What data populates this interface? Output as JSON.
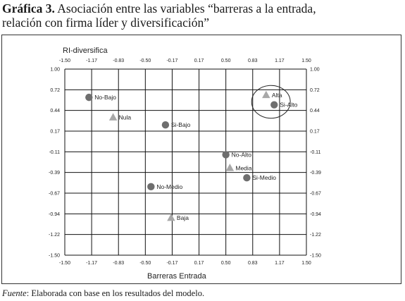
{
  "title": {
    "label": "Gráfica 3.",
    "line1": "Asociación entre las variables “barreras a la entrada,",
    "line2": "relación con firma líder y diversificación”"
  },
  "source": {
    "label": "Fuente",
    "text": ": Elaborada con base en los resultados del modelo."
  },
  "chart_data": {
    "type": "scatter",
    "xlabel": "Barreras Entrada",
    "ylabel": "RI-diversifica",
    "xlim": [
      -1.5,
      1.5
    ],
    "ylim": [
      -1.5,
      1.0
    ],
    "x_ticks": [
      "-1.50",
      "-1.17",
      "-0.83",
      "-0.50",
      "-0.17",
      "0.17",
      "0.50",
      "0.83",
      "1.17",
      "1.50"
    ],
    "y_ticks": [
      "1.00",
      "0.72",
      "0.44",
      "0.17",
      "-0.11",
      "-0.39",
      "-0.67",
      "-0.94",
      "-1.22",
      "-1.50"
    ],
    "x_tick_values": [
      -1.5,
      -1.17,
      -0.83,
      -0.5,
      -0.17,
      0.17,
      0.5,
      0.83,
      1.17,
      1.5
    ],
    "y_tick_values": [
      1.0,
      0.72,
      0.44,
      0.17,
      -0.11,
      -0.39,
      -0.67,
      -0.94,
      -1.22,
      -1.5
    ],
    "grid": true,
    "series": [
      {
        "marker": "circle",
        "color": "#6e6e6e",
        "points": [
          {
            "label": "No-Bajo",
            "x": -1.2,
            "y": 0.62
          },
          {
            "label": "Si-Bajo",
            "x": -0.25,
            "y": 0.25
          },
          {
            "label": "No-Alto",
            "x": 0.5,
            "y": -0.15
          },
          {
            "label": "Si-Medio",
            "x": 0.76,
            "y": -0.46
          },
          {
            "label": "No-Medio",
            "x": -0.43,
            "y": -0.58
          },
          {
            "label": "Si-Alto",
            "x": 1.1,
            "y": 0.52
          }
        ]
      },
      {
        "marker": "triangle",
        "color": "#a8a8a8",
        "points": [
          {
            "label": "Alta",
            "x": 1.0,
            "y": 0.65
          },
          {
            "label": "Nula",
            "x": -0.9,
            "y": 0.35
          },
          {
            "label": "Media",
            "x": 0.55,
            "y": -0.33
          },
          {
            "label": "Baja",
            "x": -0.18,
            "y": -1.0
          }
        ]
      }
    ],
    "annotations": [
      {
        "type": "ellipse",
        "around": [
          "Alta",
          "Si-Alto"
        ],
        "cx": 1.06,
        "cy": 0.56,
        "rx": 0.24,
        "ry": 0.22
      }
    ]
  }
}
